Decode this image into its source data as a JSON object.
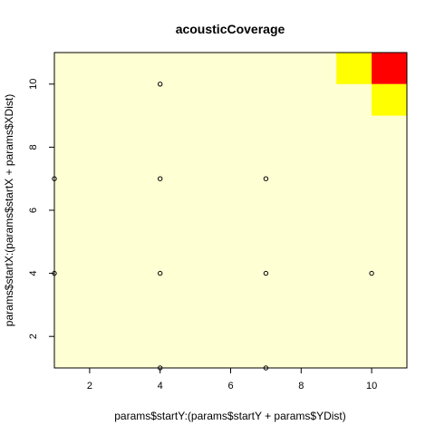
{
  "chart_data": {
    "type": "heatmap",
    "title": "acousticCoverage",
    "xlabel": "params$startY:(params$startY + params$YDist)",
    "ylabel": "params$startX:(params$startX + params$XDist)",
    "xlim": [
      1,
      11
    ],
    "ylim": [
      1,
      11
    ],
    "x_ticks": [
      2,
      4,
      6,
      8,
      10
    ],
    "y_ticks": [
      2,
      4,
      6,
      8,
      10
    ],
    "colors": {
      "background": "#ffffd4",
      "medium": "#ffff00",
      "high": "#ff0000",
      "points": "#000000"
    },
    "cells": [
      {
        "x": [
          9,
          10
        ],
        "y": [
          10,
          11
        ],
        "level": "medium"
      },
      {
        "x": [
          10,
          11
        ],
        "y": [
          10,
          11
        ],
        "level": "high"
      },
      {
        "x": [
          10,
          11
        ],
        "y": [
          9,
          10
        ],
        "level": "medium"
      }
    ],
    "points": [
      {
        "x": 4,
        "y": 10
      },
      {
        "x": 1,
        "y": 7
      },
      {
        "x": 4,
        "y": 7
      },
      {
        "x": 7,
        "y": 7
      },
      {
        "x": 1,
        "y": 4
      },
      {
        "x": 4,
        "y": 4
      },
      {
        "x": 7,
        "y": 4
      },
      {
        "x": 10,
        "y": 4
      },
      {
        "x": 4,
        "y": 1
      },
      {
        "x": 7,
        "y": 1
      }
    ]
  }
}
